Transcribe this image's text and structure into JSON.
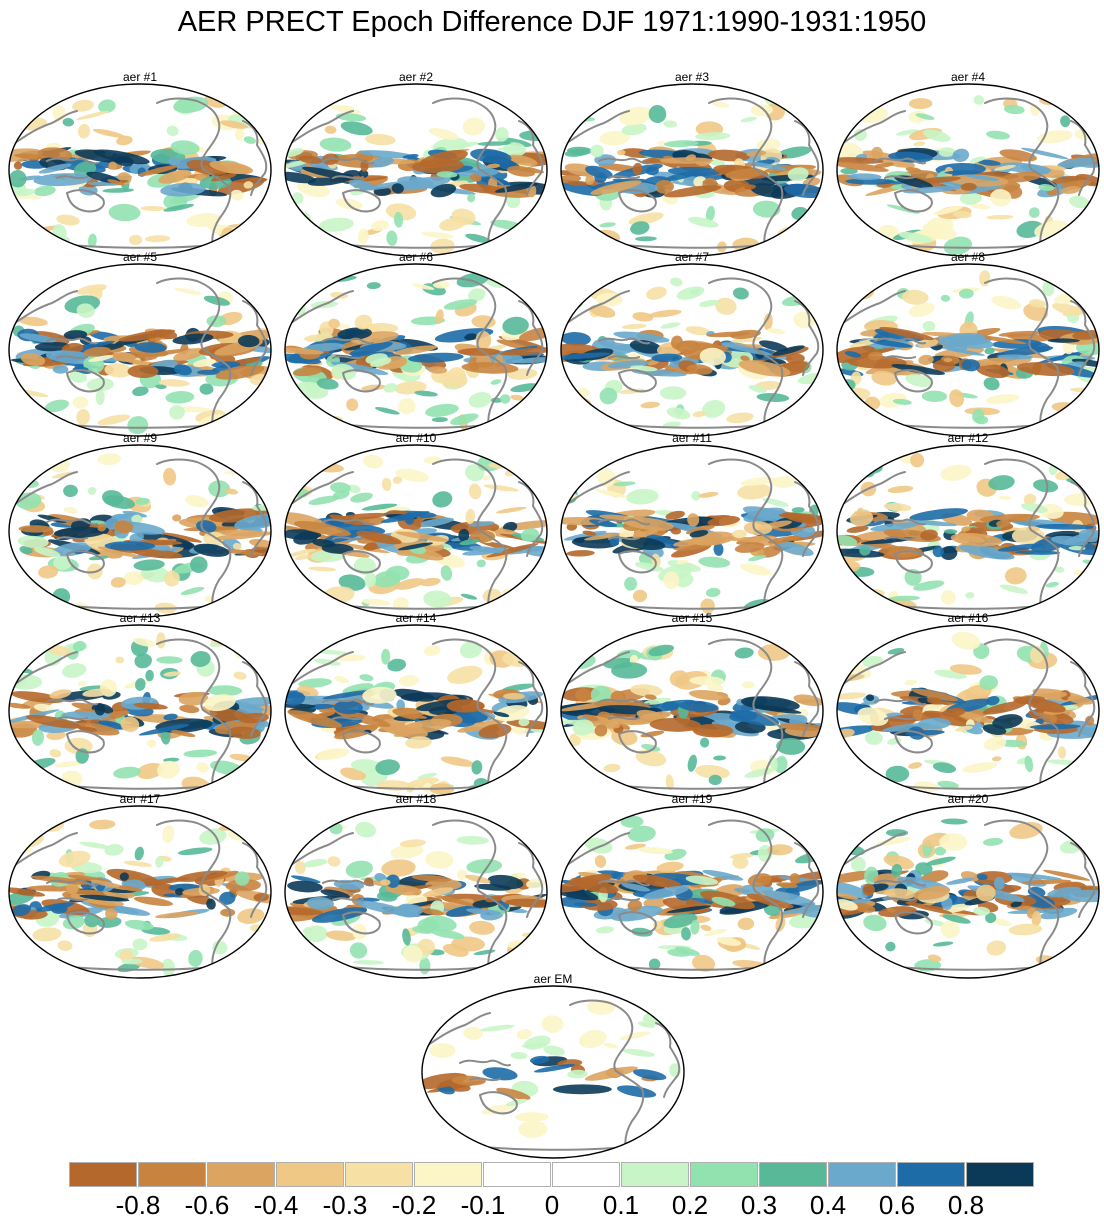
{
  "title": "AER PRECT Epoch Difference DJF 1971:1990-1931:1950",
  "panels": [
    {
      "label": "aer #1"
    },
    {
      "label": "aer #2"
    },
    {
      "label": "aer #3"
    },
    {
      "label": "aer #4"
    },
    {
      "label": "aer #5"
    },
    {
      "label": "aer #6"
    },
    {
      "label": "aer #7"
    },
    {
      "label": "aer #8"
    },
    {
      "label": "aer #9"
    },
    {
      "label": "aer #10"
    },
    {
      "label": "aer #11"
    },
    {
      "label": "aer #12"
    },
    {
      "label": "aer #13"
    },
    {
      "label": "aer #14"
    },
    {
      "label": "aer #15"
    },
    {
      "label": "aer #16"
    },
    {
      "label": "aer #17"
    },
    {
      "label": "aer #18"
    },
    {
      "label": "aer #19"
    },
    {
      "label": "aer #20"
    },
    {
      "label": "aer EM"
    }
  ],
  "colorbar": {
    "colors": [
      "#b5682b",
      "#c8843f",
      "#dba461",
      "#f0c885",
      "#f6e0a4",
      "#fcf5c6",
      "#ffffff",
      "#ffffff",
      "#c8f5c7",
      "#92e2b0",
      "#58b999",
      "#6aa8cc",
      "#1d6ca8",
      "#0b3a58"
    ],
    "labels": [
      "-0.8",
      "-0.6",
      "-0.4",
      "-0.3",
      "-0.2",
      "-0.1",
      "0",
      "0.1",
      "0.2",
      "0.3",
      "0.4",
      "0.6",
      "0.8"
    ]
  }
}
